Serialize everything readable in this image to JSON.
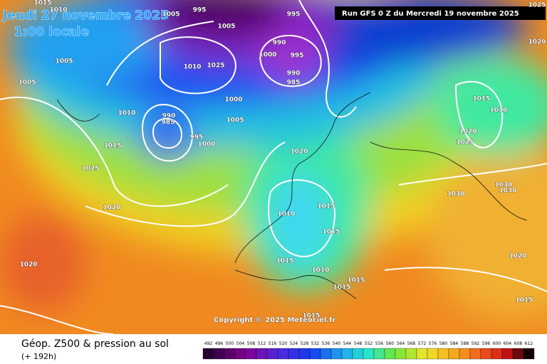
{
  "header": {
    "valid_date": "Jeudi 27 novembre 2025",
    "local_time": "1:00 locale",
    "run": "Run GFS 0 Z du Mercredi 19 novembre 2025"
  },
  "footer": {
    "title": "Géop. Z500 & pression au sol",
    "step": "(+ 192h)"
  },
  "copyright": "Copyright © 2025 Meteociel.fr",
  "isobar_labels": [
    "1015",
    "1010",
    "1005",
    "995",
    "1005",
    "995",
    "990",
    "1000",
    "995",
    "990",
    "985",
    "1010",
    "1025",
    "1000",
    "1005",
    "990",
    "985",
    "995",
    "1000",
    "1005",
    "1005",
    "1010",
    "1015",
    "1025",
    "1020",
    "1020",
    "1020",
    "1010",
    "1015",
    "1015",
    "1015",
    "1010",
    "1015",
    "1015",
    "1015",
    "1015",
    "1010",
    "1020",
    "1025",
    "1030",
    "1030",
    "1030",
    "1020",
    "1015",
    "1020",
    "1025"
  ],
  "scale": [
    492,
    496,
    500,
    504,
    508,
    512,
    516,
    520,
    524,
    528,
    532,
    536,
    540,
    544,
    548,
    552,
    556,
    560,
    564,
    568,
    572,
    576,
    580,
    584,
    588,
    592,
    596,
    600,
    604,
    608,
    612
  ]
}
